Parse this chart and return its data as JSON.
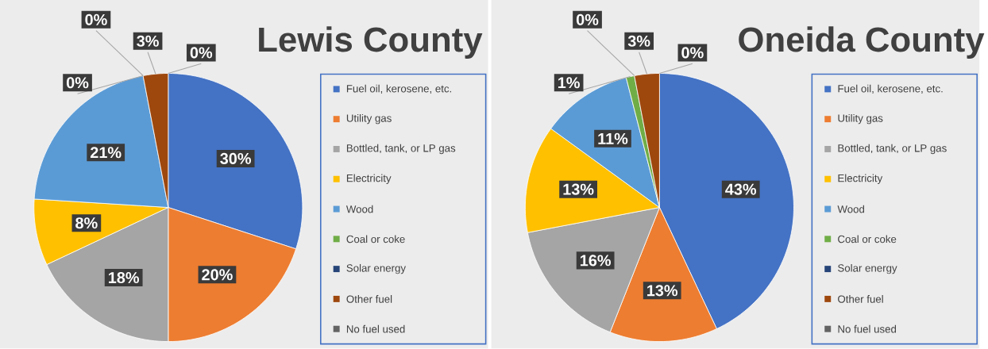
{
  "chart_data": [
    {
      "type": "pie",
      "title": "Lewis County",
      "legend": "right",
      "categories": [
        "Fuel oil, kerosene, etc.",
        "Utility gas",
        "Bottled, tank, or LP gas",
        "Electricity",
        "Wood",
        "Coal or coke",
        "Solar energy",
        "Other fuel",
        "No fuel used"
      ],
      "values": [
        30,
        20,
        18,
        8,
        21,
        0,
        0,
        3,
        0
      ],
      "value_labels": [
        "30%",
        "20%",
        "18%",
        "8%",
        "21%",
        "0%",
        "0%",
        "3%",
        "0%"
      ],
      "colors": [
        "#4472c4",
        "#ed7d31",
        "#a5a5a5",
        "#ffc000",
        "#5b9bd5",
        "#70ad47",
        "#264478",
        "#9e480e",
        "#636363"
      ]
    },
    {
      "type": "pie",
      "title": "Oneida County",
      "legend": "right",
      "categories": [
        "Fuel oil, kerosene, etc.",
        "Utility gas",
        "Bottled, tank, or LP gas",
        "Electricity",
        "Wood",
        "Coal or coke",
        "Solar energy",
        "Other fuel",
        "No fuel used"
      ],
      "values": [
        43,
        13,
        16,
        13,
        11,
        1,
        0,
        3,
        0
      ],
      "value_labels": [
        "43%",
        "13%",
        "16%",
        "13%",
        "11%",
        "1%",
        "0%",
        "3%",
        "0%"
      ],
      "colors": [
        "#4472c4",
        "#ed7d31",
        "#a5a5a5",
        "#ffc000",
        "#5b9bd5",
        "#70ad47",
        "#264478",
        "#9e480e",
        "#636363"
      ]
    }
  ]
}
